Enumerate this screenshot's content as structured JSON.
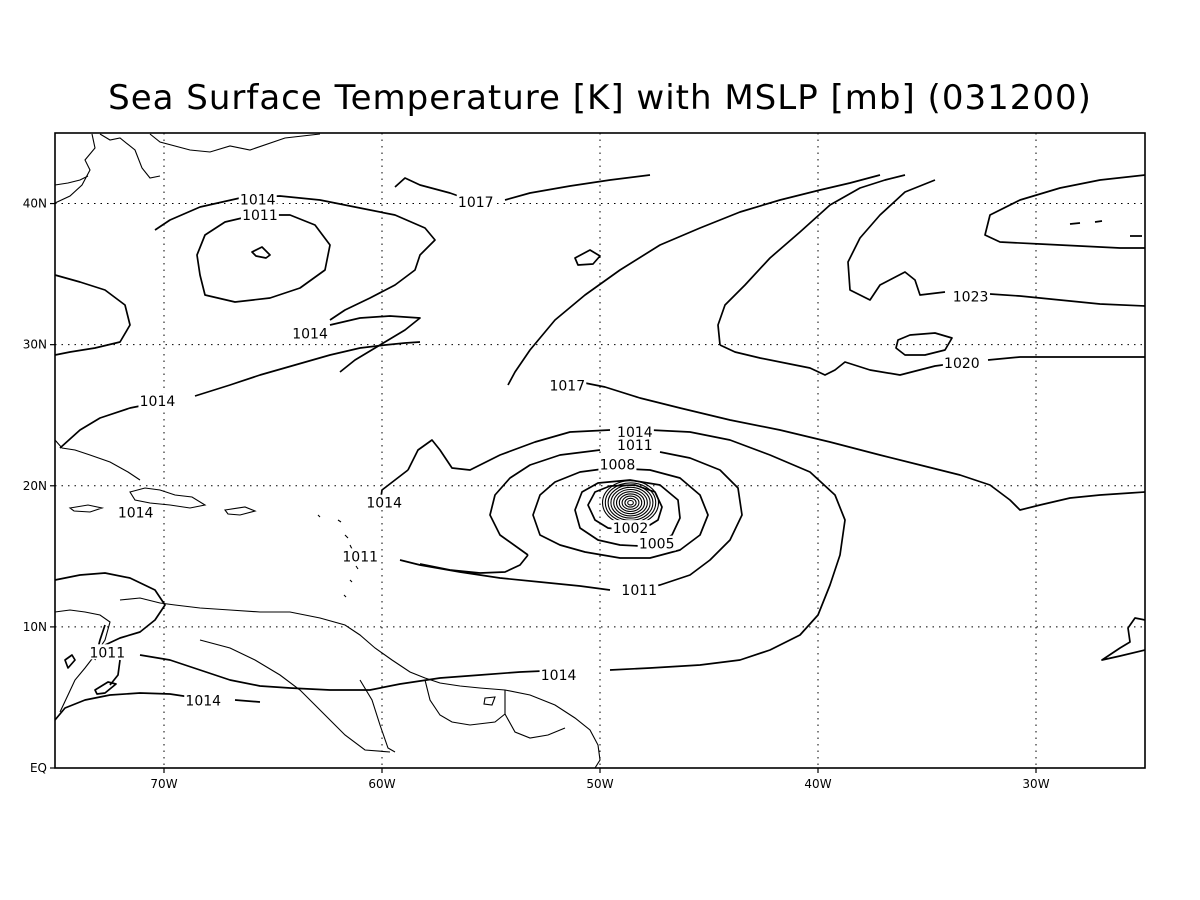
{
  "title": "Sea Surface Temperature [K] with MSLP [mb] (031200)",
  "map": {
    "lon_range": [
      -75,
      -25
    ],
    "lat_range": [
      0,
      45
    ],
    "x_ticks": [
      {
        "lon": -70,
        "label": "70W"
      },
      {
        "lon": -60,
        "label": "60W"
      },
      {
        "lon": -50,
        "label": "50W"
      },
      {
        "lon": -40,
        "label": "40W"
      },
      {
        "lon": -30,
        "label": "30W"
      }
    ],
    "y_ticks": [
      {
        "lat": 0,
        "label": "EQ"
      },
      {
        "lat": 10,
        "label": "10N"
      },
      {
        "lat": 20,
        "label": "20N"
      },
      {
        "lat": 30,
        "label": "30N"
      },
      {
        "lat": 40,
        "label": "40N"
      }
    ],
    "grid": true,
    "contour_interval_mb": 3,
    "cyclone_center": {
      "lon": -48.6,
      "lat": 18.8
    }
  },
  "contour_labels": [
    {
      "text": "1014",
      "lon": -65.7,
      "lat": 40.3
    },
    {
      "text": "1011",
      "lon": -65.6,
      "lat": 39.2
    },
    {
      "text": "1017",
      "lon": -55.7,
      "lat": 40.1
    },
    {
      "text": "1014",
      "lon": -63.3,
      "lat": 30.8
    },
    {
      "text": "1014",
      "lon": -70.3,
      "lat": 26.0
    },
    {
      "text": "1017",
      "lon": -51.5,
      "lat": 27.1
    },
    {
      "text": "1023",
      "lon": -33.0,
      "lat": 33.4
    },
    {
      "text": "1020",
      "lon": -33.4,
      "lat": 28.7
    },
    {
      "text": "1014",
      "lon": -48.4,
      "lat": 23.8
    },
    {
      "text": "1011",
      "lon": -48.4,
      "lat": 22.9
    },
    {
      "text": "1008",
      "lon": -49.2,
      "lat": 21.5
    },
    {
      "text": "1002",
      "lon": -48.6,
      "lat": 17.0
    },
    {
      "text": "1005",
      "lon": -47.4,
      "lat": 15.9
    },
    {
      "text": "1011",
      "lon": -48.2,
      "lat": 12.6
    },
    {
      "text": "1014",
      "lon": -59.9,
      "lat": 18.8
    },
    {
      "text": "1014",
      "lon": -71.3,
      "lat": 18.1
    },
    {
      "text": "1011",
      "lon": -61.0,
      "lat": 15.0
    },
    {
      "text": "1014",
      "lon": -51.9,
      "lat": 6.6
    },
    {
      "text": "1011",
      "lon": -72.6,
      "lat": 8.2
    },
    {
      "text": "1014",
      "lon": -68.2,
      "lat": 4.8
    }
  ]
}
